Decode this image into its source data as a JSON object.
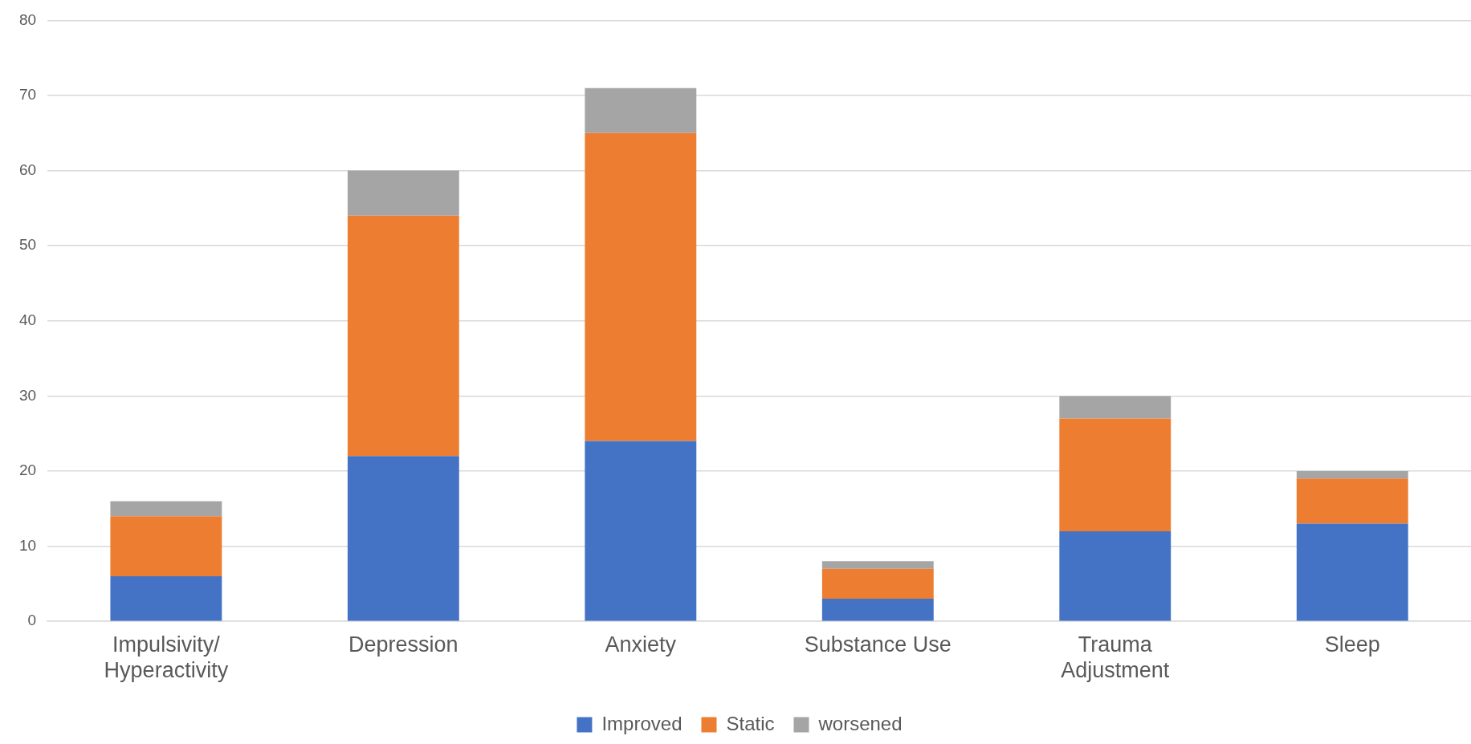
{
  "chart_data": {
    "type": "bar",
    "stacked": true,
    "categories": [
      "Impulsivity/\nHyperactivity",
      "Depression",
      "Anxiety",
      "Substance Use",
      "Trauma\nAdjustment",
      "Sleep"
    ],
    "series": [
      {
        "name": "Improved",
        "color": "#4472c4",
        "values": [
          6,
          22,
          24,
          3,
          12,
          13
        ]
      },
      {
        "name": "Static",
        "color": "#ed7d31",
        "values": [
          8,
          32,
          41,
          4,
          15,
          6
        ]
      },
      {
        "name": "worsened",
        "color": "#a5a5a5",
        "values": [
          2,
          6,
          6,
          1,
          3,
          1
        ]
      }
    ],
    "ylim": [
      0,
      80
    ],
    "yticks": [
      0,
      10,
      20,
      30,
      40,
      50,
      60,
      70,
      80
    ],
    "grid": "y",
    "legend": "bottom"
  }
}
